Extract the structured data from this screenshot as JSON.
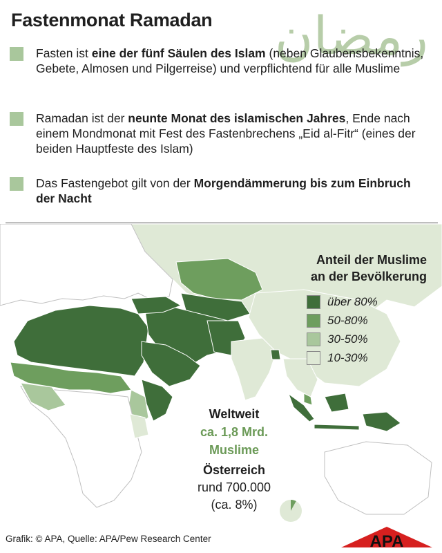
{
  "title": "Fastenmonat Ramadan",
  "arabic_title": "رمضان",
  "bullets": [
    {
      "pre": "Fasten ist ",
      "bold": "eine der fünf Säulen des Islam",
      "post": " (neben Glaubensbekenntnis, Gebete, Almosen und Pilgerreise) und verpflichtend für alle Muslime"
    },
    {
      "pre": "Ramadan ist der ",
      "bold": "neunte Monat des islamischen Jahres",
      "post": ", Ende nach einem Mondmonat mit Fest des Fastenbrechens „Eid al-Fitr“ (eines der beiden Hauptfeste des Islam)"
    },
    {
      "pre": "Das Fastengebot gilt von der ",
      "bold": "Morgendämmerung bis zum Einbruch der Nacht",
      "post": ""
    }
  ],
  "legend": {
    "title_line1": "Anteil der Muslime",
    "title_line2": "an der Bevölkerung",
    "items": [
      {
        "label": "über 80%",
        "color": "#3f6e3a"
      },
      {
        "label": "50-80%",
        "color": "#6e9e5e"
      },
      {
        "label": "30-50%",
        "color": "#a9c79c"
      },
      {
        "label": "10-30%",
        "color": "#dfe9d6"
      }
    ]
  },
  "colors": {
    "bullet_square": "#a9c79c",
    "base_land": "#ffffff",
    "accent_green": "#6b9a57",
    "apa_red": "#d6201f"
  },
  "worldwide": {
    "heading": "Weltweit",
    "line1": "ca. 1,8 Mrd.",
    "line2": "Muslime"
  },
  "austria": {
    "heading": "Österreich",
    "line1": "rund 700.000",
    "line2": "(ca. 8%)",
    "share": 0.08
  },
  "footer": "Grafik: © APA, Quelle: APA/Pew Research Center",
  "logo_text": "APA"
}
